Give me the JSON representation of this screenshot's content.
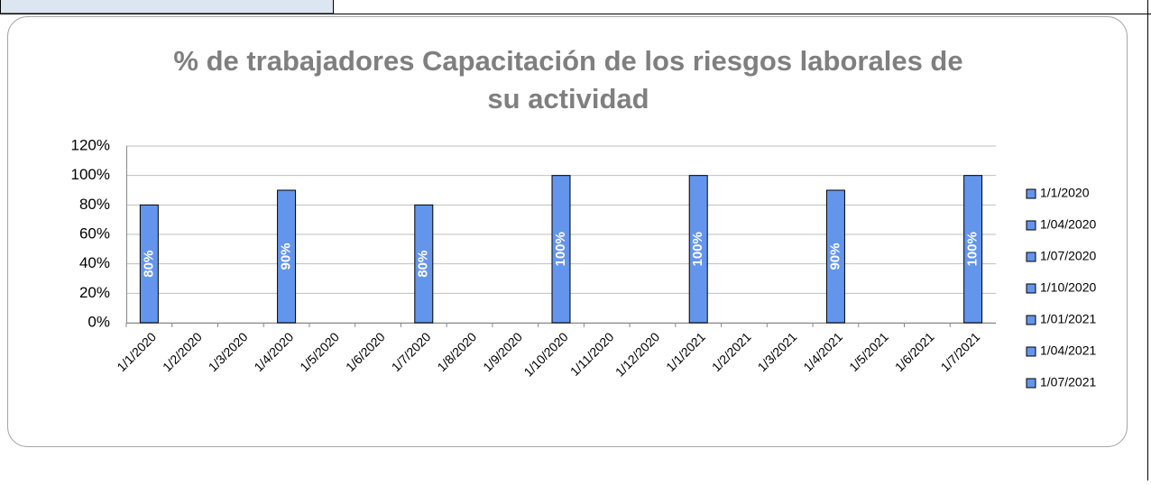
{
  "chart_data": {
    "type": "bar",
    "title": [
      "% de trabajadores Capacitación de los riesgos laborales de",
      "su actividad"
    ],
    "categories": [
      "1/1/2020",
      "1/2/2020",
      "1/3/2020",
      "1/4/2020",
      "1/5/2020",
      "1/6/2020",
      "1/7/2020",
      "1/8/2020",
      "1/9/2020",
      "1/10/2020",
      "1/11/2020",
      "1/12/2020",
      "1/1/2021",
      "1/2/2021",
      "1/3/2021",
      "1/4/2021",
      "1/5/2021",
      "1/6/2021",
      "1/7/2021"
    ],
    "series": [
      {
        "name": "1/1/2020",
        "color": "#6495ed",
        "values": [
          80,
          null,
          null,
          null,
          null,
          null,
          null,
          null,
          null,
          null,
          null,
          null,
          null,
          null,
          null,
          null,
          null,
          null,
          null
        ],
        "value_labels": [
          "80%",
          null,
          null,
          null,
          null,
          null,
          null,
          null,
          null,
          null,
          null,
          null,
          null,
          null,
          null,
          null,
          null,
          null,
          null
        ]
      },
      {
        "name": "1/04/2020",
        "color": "#6495ed",
        "values": [
          null,
          null,
          null,
          90,
          null,
          null,
          null,
          null,
          null,
          null,
          null,
          null,
          null,
          null,
          null,
          null,
          null,
          null,
          null
        ],
        "value_labels": [
          null,
          null,
          null,
          "90%",
          null,
          null,
          null,
          null,
          null,
          null,
          null,
          null,
          null,
          null,
          null,
          null,
          null,
          null,
          null
        ]
      },
      {
        "name": "1/07/2020",
        "color": "#6495ed",
        "values": [
          null,
          null,
          null,
          null,
          null,
          null,
          80,
          null,
          null,
          null,
          null,
          null,
          null,
          null,
          null,
          null,
          null,
          null,
          null
        ],
        "value_labels": [
          null,
          null,
          null,
          null,
          null,
          null,
          "80%",
          null,
          null,
          null,
          null,
          null,
          null,
          null,
          null,
          null,
          null,
          null,
          null
        ]
      },
      {
        "name": "1/10/2020",
        "color": "#6495ed",
        "values": [
          null,
          null,
          null,
          null,
          null,
          null,
          null,
          null,
          null,
          100,
          null,
          null,
          null,
          null,
          null,
          null,
          null,
          null,
          null
        ],
        "value_labels": [
          null,
          null,
          null,
          null,
          null,
          null,
          null,
          null,
          null,
          "100%",
          null,
          null,
          null,
          null,
          null,
          null,
          null,
          null,
          null
        ]
      },
      {
        "name": "1/01/2021",
        "color": "#6495ed",
        "values": [
          null,
          null,
          null,
          null,
          null,
          null,
          null,
          null,
          null,
          null,
          null,
          null,
          100,
          null,
          null,
          null,
          null,
          null,
          null
        ],
        "value_labels": [
          null,
          null,
          null,
          null,
          null,
          null,
          null,
          null,
          null,
          null,
          null,
          null,
          "100%",
          null,
          null,
          null,
          null,
          null,
          null
        ]
      },
      {
        "name": "1/04/2021",
        "color": "#6495ed",
        "values": [
          null,
          null,
          null,
          null,
          null,
          null,
          null,
          null,
          null,
          null,
          null,
          null,
          null,
          null,
          null,
          90,
          null,
          null,
          null
        ],
        "value_labels": [
          null,
          null,
          null,
          null,
          null,
          null,
          null,
          null,
          null,
          null,
          null,
          null,
          null,
          null,
          null,
          "90%",
          null,
          null,
          null
        ]
      },
      {
        "name": "1/07/2021",
        "color": "#6495ed",
        "values": [
          null,
          null,
          null,
          null,
          null,
          null,
          null,
          null,
          null,
          null,
          null,
          null,
          null,
          null,
          null,
          null,
          null,
          null,
          100
        ],
        "value_labels": [
          null,
          null,
          null,
          null,
          null,
          null,
          null,
          null,
          null,
          null,
          null,
          null,
          null,
          null,
          null,
          null,
          null,
          null,
          "100%"
        ]
      }
    ],
    "ylim": [
      0,
      120
    ],
    "yticks": [
      {
        "value": 0,
        "label": "0%"
      },
      {
        "value": 20,
        "label": "20%"
      },
      {
        "value": 40,
        "label": "40%"
      },
      {
        "value": 60,
        "label": "60%"
      },
      {
        "value": 80,
        "label": "80%"
      },
      {
        "value": 100,
        "label": "100%"
      },
      {
        "value": 120,
        "label": "120%"
      }
    ],
    "grid": true,
    "legend": "right"
  }
}
